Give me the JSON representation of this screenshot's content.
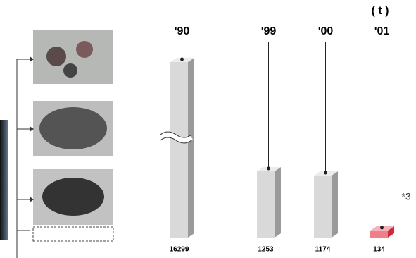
{
  "chart_data": {
    "type": "bar",
    "unit": "( t )",
    "categories": [
      "'90",
      "'99",
      "'00",
      "'01"
    ],
    "values": [
      16299,
      1253,
      1174,
      134
    ],
    "colors": [
      "#d9d9d9",
      "#d9d9d9",
      "#d9d9d9",
      "#f07f8a"
    ],
    "annotation": "*3",
    "axis_break": true
  }
}
